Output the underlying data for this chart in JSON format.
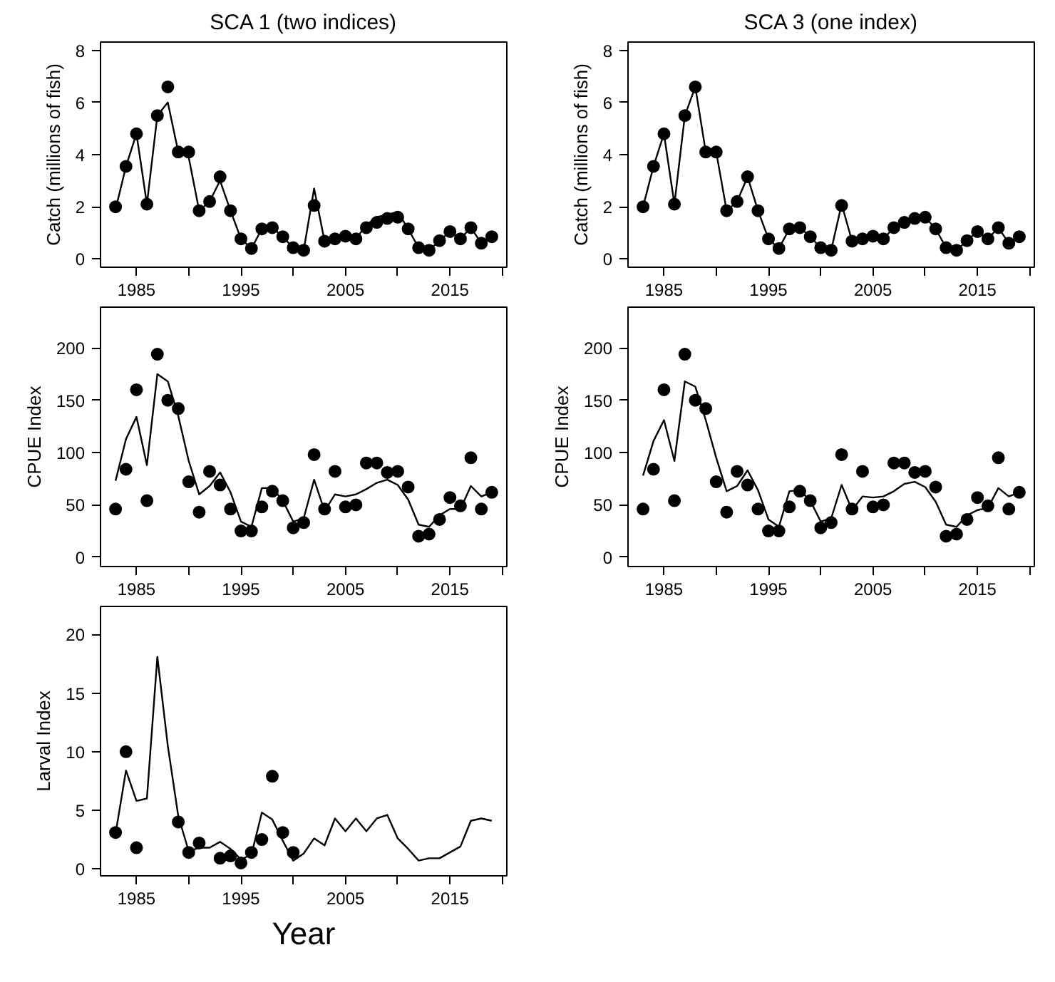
{
  "chart_data": [
    {
      "type": "line",
      "title": "SCA 1 (two indices)",
      "ylabel": "Catch (millions of fish)",
      "x": [
        1983,
        1984,
        1985,
        1986,
        1987,
        1988,
        1989,
        1990,
        1991,
        1992,
        1993,
        1994,
        1995,
        1996,
        1997,
        1998,
        1999,
        2000,
        2001,
        2002,
        2003,
        2004,
        2005,
        2006,
        2007,
        2008,
        2009,
        2010,
        2011,
        2012,
        2013,
        2014,
        2015,
        2016,
        2017,
        2018,
        2019
      ],
      "xlim": [
        1981.56,
        2020.44
      ],
      "xticks": [
        1985,
        {
          "value": 1990,
          "label": null
        },
        1995,
        {
          "value": 2000,
          "label": null
        },
        2005,
        {
          "value": 2010,
          "label": null
        },
        2015,
        {
          "value": 2020,
          "label": null
        }
      ],
      "ylim": [
        -0.32,
        8.32
      ],
      "yticks": [
        0,
        2,
        4,
        6,
        8
      ],
      "grid": false,
      "series": [
        {
          "type": "scatter",
          "marker": "circle",
          "color": "#000000",
          "values": [
            2.0,
            3.55,
            4.8,
            2.1,
            5.5,
            6.6,
            4.1,
            4.1,
            1.85,
            2.2,
            3.15,
            1.85,
            0.77,
            0.4,
            1.15,
            1.2,
            0.85,
            0.43,
            0.33,
            2.05,
            0.68,
            0.77,
            0.87,
            0.77,
            1.2,
            1.4,
            1.55,
            1.6,
            1.15,
            0.43,
            0.33,
            0.7,
            1.05,
            0.77,
            1.2,
            0.6,
            0.85
          ]
        },
        {
          "line_style": "solid",
          "color": "#000000",
          "values": [
            1.9,
            3.55,
            4.8,
            2.1,
            5.5,
            6.0,
            4.1,
            3.9,
            1.85,
            2.2,
            3.0,
            1.85,
            0.77,
            0.4,
            1.15,
            1.2,
            0.85,
            0.43,
            0.33,
            2.7,
            0.68,
            0.77,
            0.87,
            0.77,
            1.3,
            1.6,
            1.7,
            1.8,
            1.15,
            0.43,
            0.33,
            0.7,
            1.05,
            0.77,
            1.2,
            0.6,
            0.85
          ]
        }
      ]
    },
    {
      "type": "line",
      "title": "SCA 3 (one index)",
      "ylabel": "Catch (millions of fish)",
      "x": [
        1983,
        1984,
        1985,
        1986,
        1987,
        1988,
        1989,
        1990,
        1991,
        1992,
        1993,
        1994,
        1995,
        1996,
        1997,
        1998,
        1999,
        2000,
        2001,
        2002,
        2003,
        2004,
        2005,
        2006,
        2007,
        2008,
        2009,
        2010,
        2011,
        2012,
        2013,
        2014,
        2015,
        2016,
        2017,
        2018,
        2019
      ],
      "xlim": [
        1981.56,
        2020.44
      ],
      "xticks": [
        1985,
        {
          "value": 1990,
          "label": null
        },
        1995,
        {
          "value": 2000,
          "label": null
        },
        2005,
        {
          "value": 2010,
          "label": null
        },
        2015,
        {
          "value": 2020,
          "label": null
        }
      ],
      "ylim": [
        -0.32,
        8.32
      ],
      "yticks": [
        0,
        2,
        4,
        6,
        8
      ],
      "grid": false,
      "series": [
        {
          "type": "scatter",
          "marker": "circle",
          "color": "#000000",
          "values": [
            2.0,
            3.55,
            4.8,
            2.1,
            5.5,
            6.6,
            4.1,
            4.1,
            1.85,
            2.2,
            3.15,
            1.85,
            0.77,
            0.4,
            1.15,
            1.2,
            0.85,
            0.43,
            0.33,
            2.05,
            0.68,
            0.77,
            0.87,
            0.77,
            1.2,
            1.4,
            1.55,
            1.6,
            1.15,
            0.43,
            0.33,
            0.7,
            1.05,
            0.77,
            1.2,
            0.6,
            0.85
          ]
        },
        {
          "line_style": "solid",
          "color": "#000000",
          "values": [
            2.0,
            3.55,
            4.8,
            2.1,
            5.5,
            6.6,
            4.1,
            4.1,
            1.85,
            2.2,
            3.15,
            1.85,
            0.77,
            0.4,
            1.15,
            1.2,
            0.85,
            0.43,
            0.33,
            2.1,
            0.68,
            0.77,
            0.87,
            0.77,
            1.2,
            1.4,
            1.55,
            1.6,
            1.15,
            0.43,
            0.33,
            0.7,
            1.05,
            0.77,
            1.2,
            0.6,
            0.85
          ]
        }
      ]
    },
    {
      "type": "line",
      "ylabel": "CPUE Index",
      "x": [
        1983,
        1984,
        1985,
        1986,
        1987,
        1988,
        1989,
        1990,
        1991,
        1992,
        1993,
        1994,
        1995,
        1996,
        1997,
        1998,
        1999,
        2000,
        2001,
        2002,
        2003,
        2004,
        2005,
        2006,
        2007,
        2008,
        2009,
        2010,
        2011,
        2012,
        2013,
        2014,
        2015,
        2016,
        2017,
        2018,
        2019
      ],
      "xlim": [
        1981.56,
        2020.44
      ],
      "xticks": [
        1985,
        {
          "value": 1990,
          "label": null
        },
        1995,
        {
          "value": 2000,
          "label": null
        },
        2005,
        {
          "value": 2010,
          "label": null
        },
        2015,
        {
          "value": 2020,
          "label": null
        }
      ],
      "ylim": [
        -9,
        239
      ],
      "yticks": [
        0,
        50,
        100,
        150,
        200
      ],
      "grid": false,
      "series": [
        {
          "type": "scatter",
          "marker": "circle",
          "color": "#000000",
          "values": [
            46,
            84,
            160,
            54,
            194,
            150,
            142,
            72,
            43,
            82,
            69,
            46,
            25,
            25,
            48,
            63,
            54,
            28,
            33,
            98,
            46,
            82,
            48,
            50,
            90,
            90,
            81,
            82,
            67,
            20,
            22,
            36,
            57,
            49,
            95,
            46,
            62
          ]
        },
        {
          "line_style": "solid",
          "color": "#000000",
          "values": [
            73,
            113,
            134,
            88,
            175,
            168,
            135,
            92,
            60,
            68,
            81,
            62,
            34,
            29,
            66,
            66,
            54,
            34,
            37,
            74,
            44,
            60,
            58,
            60,
            65,
            71,
            74,
            69,
            55,
            31,
            29,
            40,
            46,
            46,
            68,
            58,
            62
          ]
        }
      ]
    },
    {
      "type": "line",
      "ylabel": "CPUE Index",
      "x": [
        1983,
        1984,
        1985,
        1986,
        1987,
        1988,
        1989,
        1990,
        1991,
        1992,
        1993,
        1994,
        1995,
        1996,
        1997,
        1998,
        1999,
        2000,
        2001,
        2002,
        2003,
        2004,
        2005,
        2006,
        2007,
        2008,
        2009,
        2010,
        2011,
        2012,
        2013,
        2014,
        2015,
        2016,
        2017,
        2018,
        2019
      ],
      "xlim": [
        1981.56,
        2020.44
      ],
      "xticks": [
        1985,
        {
          "value": 1990,
          "label": null
        },
        1995,
        {
          "value": 2000,
          "label": null
        },
        2005,
        {
          "value": 2010,
          "label": null
        },
        2015,
        {
          "value": 2020,
          "label": null
        }
      ],
      "ylim": [
        -9,
        239
      ],
      "yticks": [
        0,
        50,
        100,
        150,
        200
      ],
      "grid": false,
      "series": [
        {
          "type": "scatter",
          "marker": "circle",
          "color": "#000000",
          "values": [
            46,
            84,
            160,
            54,
            194,
            150,
            142,
            72,
            43,
            82,
            69,
            46,
            25,
            25,
            48,
            63,
            54,
            28,
            33,
            98,
            46,
            82,
            48,
            50,
            90,
            90,
            81,
            82,
            67,
            20,
            22,
            36,
            57,
            49,
            95,
            46,
            62
          ]
        },
        {
          "line_style": "solid",
          "color": "#000000",
          "values": [
            78,
            111,
            131,
            92,
            168,
            163,
            131,
            95,
            63,
            68,
            83,
            64,
            36,
            29,
            63,
            64,
            54,
            34,
            37,
            69,
            45,
            58,
            57,
            58,
            63,
            70,
            72,
            67,
            53,
            31,
            29,
            40,
            45,
            47,
            66,
            58,
            62
          ]
        }
      ]
    },
    {
      "type": "line",
      "ylabel": "Larval Index",
      "xlabel": "Year",
      "x": [
        1983,
        1984,
        1985,
        1986,
        1987,
        1988,
        1989,
        1990,
        1991,
        1992,
        1993,
        1994,
        1995,
        1996,
        1997,
        1998,
        1999,
        2000,
        2001,
        2002,
        2003,
        2004,
        2005,
        2006,
        2007,
        2008,
        2009,
        2010,
        2011,
        2012,
        2013,
        2014,
        2015,
        2016,
        2017,
        2018,
        2019
      ],
      "xlim": [
        1981.56,
        2020.44
      ],
      "xticks": [
        1985,
        {
          "value": 1990,
          "label": null
        },
        1995,
        {
          "value": 2000,
          "label": null
        },
        2005,
        {
          "value": 2010,
          "label": null
        },
        2015,
        {
          "value": 2020,
          "label": null
        }
      ],
      "ylim": [
        -0.6,
        22.4
      ],
      "yticks": [
        0,
        5,
        10,
        15,
        20
      ],
      "grid": false,
      "series": [
        {
          "type": "scatter",
          "marker": "circle",
          "color": "#000000",
          "values": [
            3.1,
            10.0,
            1.8,
            null,
            null,
            null,
            4.0,
            1.4,
            2.2,
            null,
            0.9,
            1.1,
            0.5,
            1.4,
            2.5,
            7.9,
            3.1,
            1.4,
            null,
            null,
            null,
            null,
            null,
            null,
            null,
            null,
            null,
            null,
            null,
            null,
            null,
            null,
            null,
            null,
            null,
            null,
            null
          ]
        },
        {
          "line_style": "solid",
          "color": "#000000",
          "values": [
            3.0,
            8.4,
            5.8,
            6.0,
            18.1,
            10.5,
            4.5,
            1.5,
            1.8,
            1.8,
            2.3,
            1.7,
            0.8,
            1.2,
            4.8,
            4.2,
            2.4,
            0.7,
            1.3,
            2.6,
            2.0,
            4.3,
            3.2,
            4.3,
            3.2,
            4.3,
            4.6,
            2.6,
            1.7,
            0.7,
            0.9,
            0.9,
            1.4,
            1.9,
            4.1,
            4.3,
            4.1
          ]
        }
      ]
    }
  ]
}
